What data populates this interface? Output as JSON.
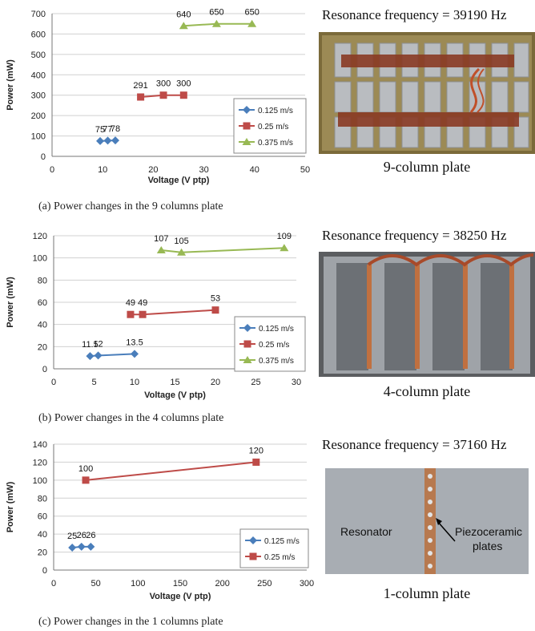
{
  "chart_data": [
    {
      "type": "line",
      "ylabel": "Power (mW)",
      "xlabel": "Voltage (V ptp)",
      "xlim": [
        0,
        50
      ],
      "ylim": [
        0,
        700
      ],
      "xticks": [
        0,
        10,
        20,
        30,
        40,
        50
      ],
      "yticks": [
        0,
        100,
        200,
        300,
        400,
        500,
        600,
        700
      ],
      "xtick_labels": [
        "0",
        "10",
        "20",
        "30",
        "40",
        "50"
      ],
      "ytick_labels": [
        "0",
        "100",
        "200",
        "300",
        "400",
        "500",
        "600",
        "700"
      ],
      "grid": true,
      "legend_position": "right",
      "series": [
        {
          "name": "0.125 m/s",
          "color": "#4a7ebb",
          "marker": "diamond",
          "x": [
            9.5,
            11,
            12.5
          ],
          "y": [
            75,
            77,
            78
          ],
          "labels": [
            "75",
            "77",
            "78"
          ]
        },
        {
          "name": "0.25 m/s",
          "color": "#be4b48",
          "marker": "square",
          "x": [
            17.5,
            22,
            26
          ],
          "y": [
            291,
            300,
            300
          ],
          "labels": [
            "291",
            "300",
            "300"
          ]
        },
        {
          "name": "0.375 m/s",
          "color": "#98b954",
          "marker": "triangle",
          "x": [
            26,
            32.5,
            39.5
          ],
          "y": [
            640,
            650,
            650
          ],
          "labels": [
            "640",
            "650",
            "650"
          ]
        }
      ]
    },
    {
      "type": "line",
      "ylabel": "Power (mW)",
      "xlabel": "Voltage (V ptp)",
      "xlim": [
        0,
        30
      ],
      "ylim": [
        0,
        120
      ],
      "xticks": [
        0,
        5,
        10,
        15,
        20,
        25,
        30
      ],
      "yticks": [
        0,
        20,
        40,
        60,
        80,
        100,
        120
      ],
      "xtick_labels": [
        "0",
        "5",
        "10",
        "15",
        "20",
        "25",
        "30"
      ],
      "ytick_labels": [
        "0",
        "20",
        "40",
        "60",
        "80",
        "100",
        "120"
      ],
      "grid": true,
      "legend_position": "right",
      "series": [
        {
          "name": "0.125 m/s",
          "color": "#4a7ebb",
          "marker": "diamond",
          "x": [
            4.5,
            5.5,
            10
          ],
          "y": [
            11.5,
            12,
            13.5
          ],
          "labels": [
            "11.5",
            "12",
            "13.5"
          ]
        },
        {
          "name": "0.25 m/s",
          "color": "#be4b48",
          "marker": "square",
          "x": [
            9.5,
            11,
            20
          ],
          "y": [
            49,
            49,
            53
          ],
          "labels": [
            "49",
            "49",
            "53"
          ]
        },
        {
          "name": "0.375 m/s",
          "color": "#98b954",
          "marker": "triangle",
          "x": [
            13.3,
            15.8,
            28.5
          ],
          "y": [
            107,
            105,
            109
          ],
          "labels": [
            "107",
            "105",
            "109"
          ]
        }
      ]
    },
    {
      "type": "line",
      "ylabel": "Power (mW)",
      "xlabel": "Voltage (V ptp)",
      "xlim": [
        0,
        300
      ],
      "ylim": [
        0,
        140
      ],
      "xticks": [
        0,
        50,
        100,
        150,
        200,
        250,
        300
      ],
      "yticks": [
        0,
        20,
        40,
        60,
        80,
        100,
        120,
        140
      ],
      "xtick_labels": [
        "0",
        "50",
        "100",
        "150",
        "200",
        "250",
        "300"
      ],
      "ytick_labels": [
        "0",
        "20",
        "40",
        "60",
        "80",
        "100",
        "120",
        "140"
      ],
      "grid": true,
      "legend_position": "right",
      "series": [
        {
          "name": "0.125 m/s",
          "color": "#4a7ebb",
          "marker": "diamond",
          "x": [
            22,
            33,
            44
          ],
          "y": [
            25,
            26,
            26
          ],
          "labels": [
            "25",
            "26",
            "26"
          ]
        },
        {
          "name": "0.25 m/s",
          "color": "#be4b48",
          "marker": "square",
          "x": [
            38,
            240
          ],
          "y": [
            100,
            120
          ],
          "labels": [
            "100",
            "120"
          ]
        }
      ]
    }
  ],
  "captions": [
    "(a) Power changes in the 9 columns plate",
    "(b) Power changes in the 4 columns plate",
    "(c) Power changes in the 1 columns plate"
  ],
  "resonance": [
    "Resonance frequency = 39190 Hz",
    "Resonance frequency = 38250 Hz",
    "Resonance frequency = 37160 Hz"
  ],
  "plates": [
    "9-column plate",
    "4-column plate",
    "1-column plate"
  ],
  "photo_labels": {
    "resonator": "Resonator",
    "piezo_1": "Piezoceramic",
    "piezo_2": "plates"
  }
}
